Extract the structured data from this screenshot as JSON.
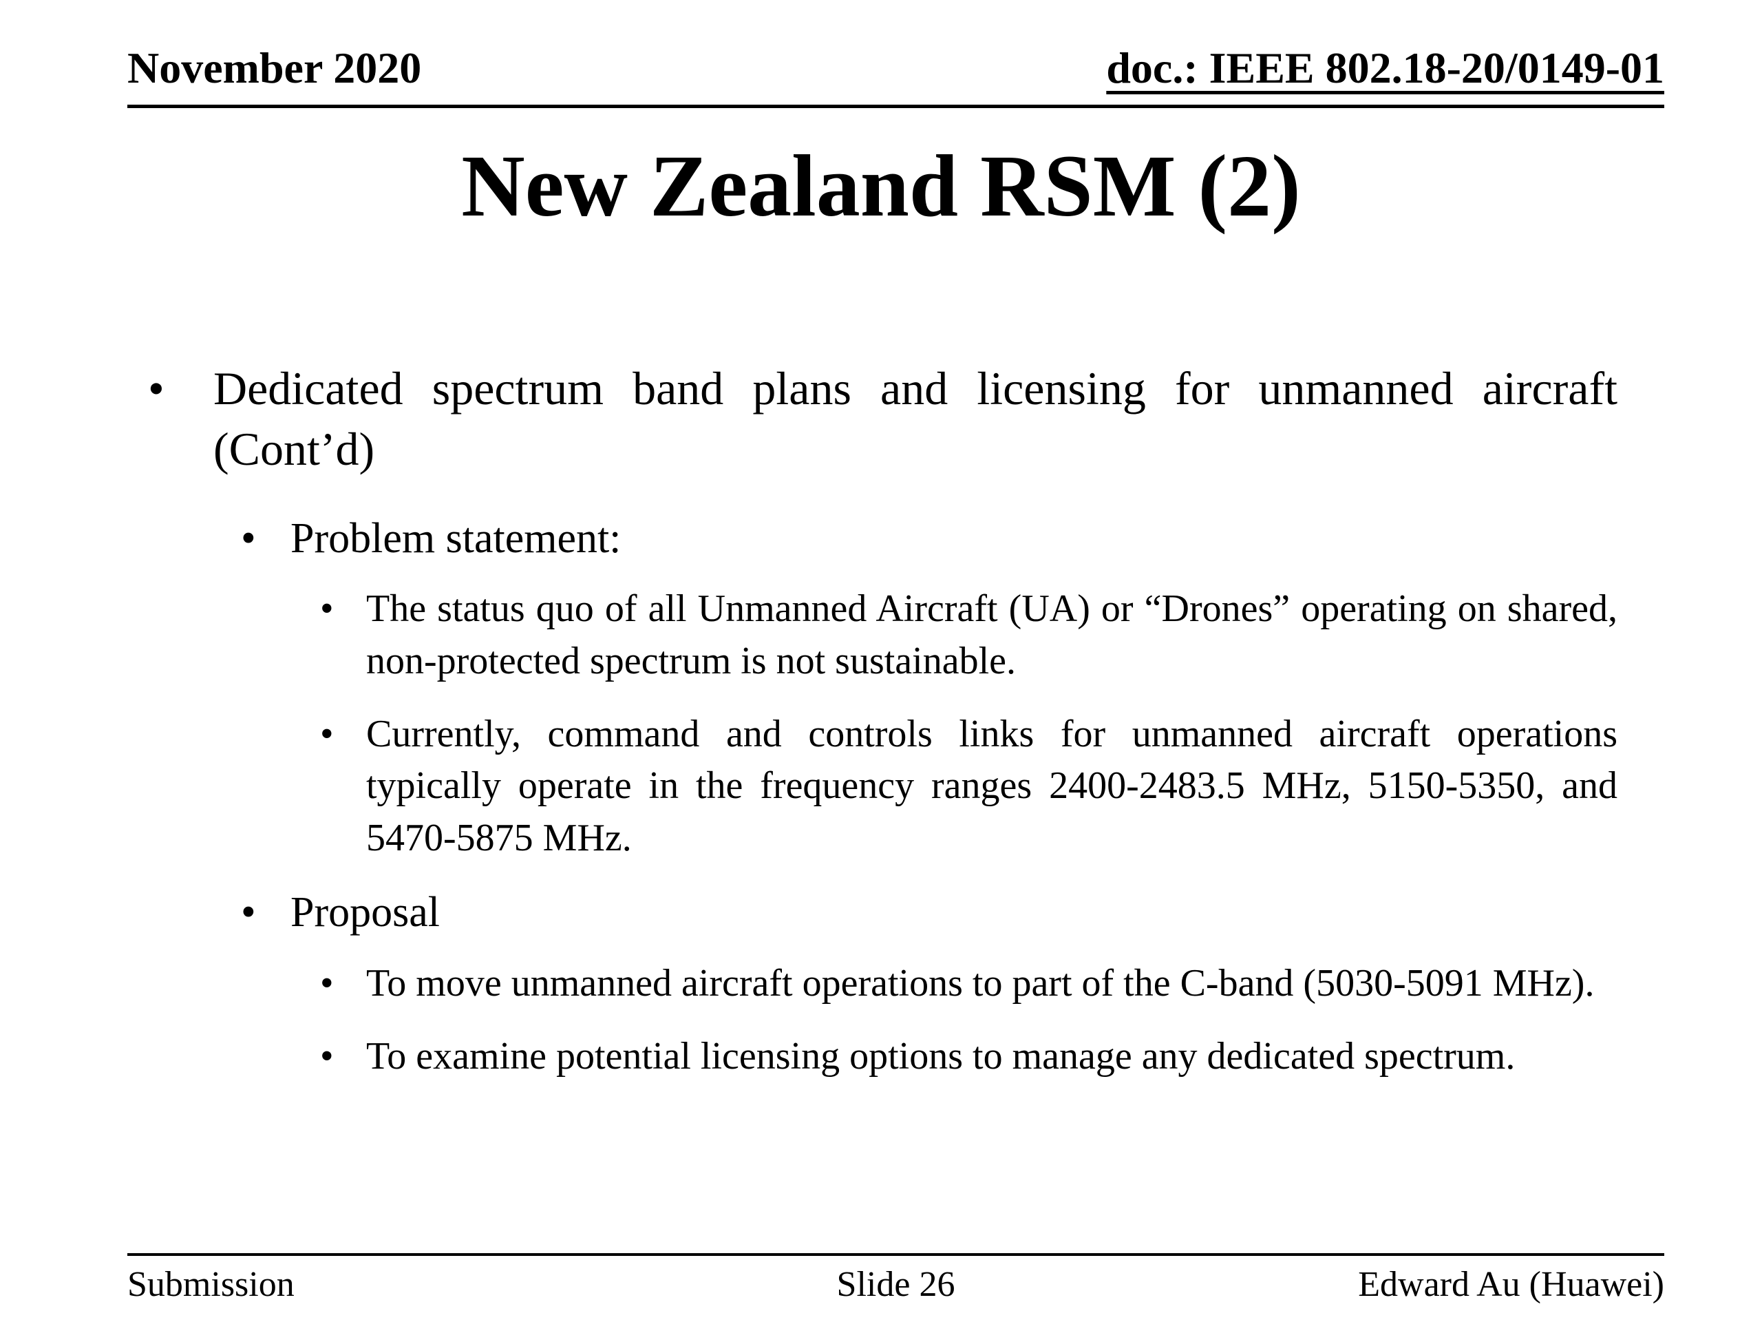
{
  "colors": {
    "background": "#ffffff",
    "text": "#000000"
  },
  "header": {
    "date": "November 2020",
    "doc_number": "doc.: IEEE 802.18-20/0149-01"
  },
  "title": "New Zealand RSM (2)",
  "bullet_marker": "•",
  "bullets": [
    {
      "level": 1,
      "text": "Dedicated spectrum band plans and licensing for unmanned aircraft (Cont’d)"
    },
    {
      "level": 2,
      "text": "Problem statement:"
    },
    {
      "level": 3,
      "text": "The status quo of all Unmanned Aircraft (UA) or “Drones” operating on shared, non-protected spectrum is not sustainable."
    },
    {
      "level": 3,
      "text": "Currently, command and controls links for unmanned aircraft operations typically operate in the frequency ranges 2400-2483.5 MHz, 5150-5350, and 5470-5875 MHz."
    },
    {
      "level": 2,
      "text": "Proposal"
    },
    {
      "level": 3,
      "text": "To move unmanned aircraft operations to part of the C-band (5030-5091 MHz)."
    },
    {
      "level": 3,
      "text": "To examine potential licensing options to manage any dedicated spectrum."
    }
  ],
  "footer": {
    "left": "Submission",
    "center": "Slide 26",
    "right": "Edward Au (Huawei)"
  }
}
